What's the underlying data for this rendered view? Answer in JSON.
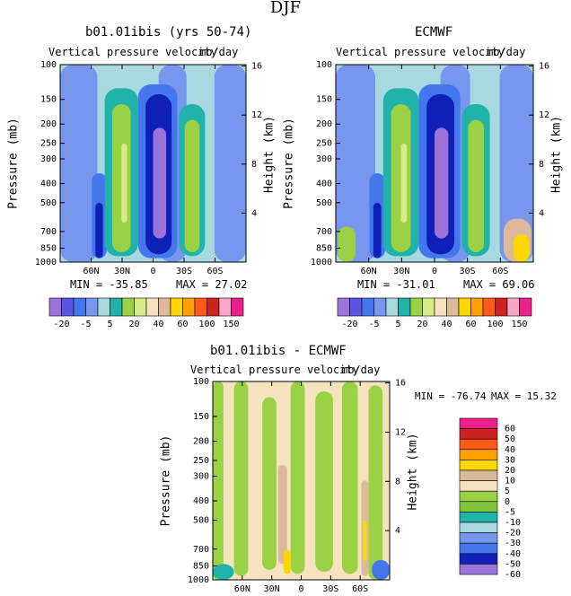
{
  "main_title": "DJF",
  "chart_data": [
    {
      "type": "contour",
      "title": "b01.01ibis (yrs 50-74)",
      "subtitle_left": "Vertical pressure velocity",
      "subtitle_right": "mb/day",
      "ylabel": "Pressure (mb)",
      "ylabel_right": "Height (km)",
      "y_ticks": [
        "100",
        "150",
        "200",
        "250",
        "300",
        "400",
        "500",
        "700",
        "850",
        "1000"
      ],
      "y_right_ticks": [
        "16",
        "12",
        "8",
        "4"
      ],
      "x_ticks": [
        "60N",
        "30N",
        "0",
        "30S",
        "60S"
      ],
      "min_label": "MIN = -35.85",
      "max_label": "MAX = 27.02",
      "min": -35.85,
      "max": 27.02,
      "levels": [
        "-20",
        "-5",
        "5",
        "20",
        "40",
        "60",
        "100",
        "150"
      ]
    },
    {
      "type": "contour",
      "title": "ECMWF",
      "subtitle_left": "Vertical pressure velocity",
      "subtitle_right": "mb/day",
      "ylabel": "Pressure (mb)",
      "ylabel_right": "Height (km)",
      "y_ticks": [
        "100",
        "150",
        "200",
        "250",
        "300",
        "400",
        "500",
        "700",
        "850",
        "1000"
      ],
      "y_right_ticks": [
        "16",
        "12",
        "8",
        "4"
      ],
      "x_ticks": [
        "60N",
        "30N",
        "0",
        "30S",
        "60S"
      ],
      "min_label": "MIN = -31.01",
      "max_label": "MAX = 69.06",
      "min": -31.01,
      "max": 69.06,
      "levels": [
        "-20",
        "-5",
        "5",
        "20",
        "40",
        "60",
        "100",
        "150"
      ]
    },
    {
      "type": "contour",
      "title": "b01.01ibis - ECMWF",
      "subtitle_left": "Vertical pressure velocity",
      "subtitle_right": "mb/day",
      "ylabel": "Pressure (mb)",
      "ylabel_right": "Height (km)",
      "y_ticks": [
        "100",
        "150",
        "200",
        "250",
        "300",
        "400",
        "500",
        "700",
        "850",
        "1000"
      ],
      "y_right_ticks": [
        "16",
        "12",
        "8",
        "4"
      ],
      "x_ticks": [
        "60N",
        "30N",
        "0",
        "30S",
        "60S"
      ],
      "min_label": "MIN = -76.74",
      "max_label": "MAX =  15.32",
      "min": -76.74,
      "max": 15.32,
      "levels": [
        "60",
        "50",
        "40",
        "30",
        "20",
        "10",
        "5",
        "0",
        "-5",
        "-10",
        "-20",
        "-30",
        "-40",
        "-50",
        "-60"
      ]
    }
  ],
  "colorbar_top_colors": [
    "#9b73d9",
    "#5b55e3",
    "#4477ee",
    "#7797ee",
    "#a8d8e0",
    "#1fb3aa",
    "#9ad145",
    "#d6ec88",
    "#f5e3c0",
    "#dcb99a",
    "#ffd700",
    "#ff9f00",
    "#ff5a1a",
    "#cc2222",
    "#f7a8c6",
    "#ee1f8c"
  ],
  "colorbar_diff_colors": [
    "#ee1f8c",
    "#cc2222",
    "#ff5a1a",
    "#ff9f00",
    "#ffd700",
    "#dcb99a",
    "#f5e3c0",
    "#9ad145",
    "#7fc43a",
    "#1fb3aa",
    "#a8d8e0",
    "#7797ee",
    "#4477ee",
    "#0f1fb8",
    "#9b73d9"
  ]
}
